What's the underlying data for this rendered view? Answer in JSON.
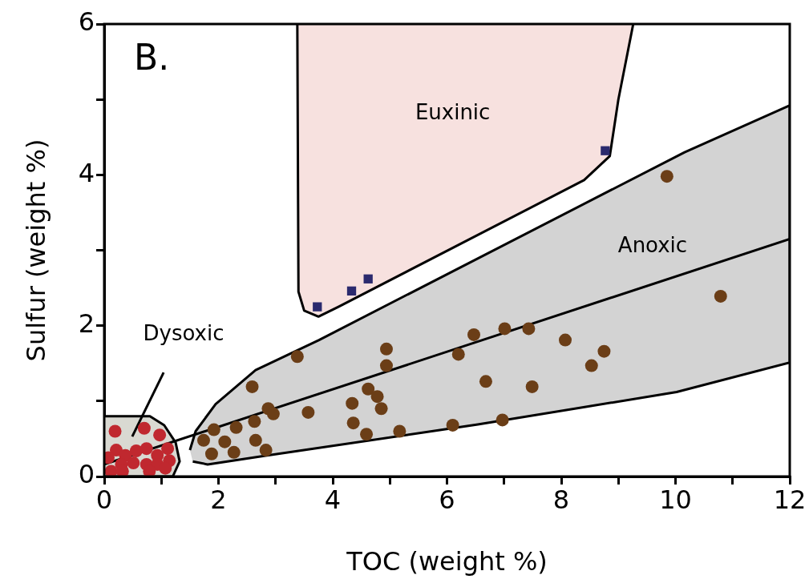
{
  "chart_data": {
    "type": "scatter",
    "xlabel": "TOC (weight %)",
    "ylabel": "Sulfur (weight %)",
    "xlim": [
      0,
      12
    ],
    "ylim": [
      0,
      6
    ],
    "xticks": [
      0,
      {
        "value": 1,
        "label": null
      },
      2,
      {
        "value": 3,
        "label": null
      },
      4,
      {
        "value": 5,
        "label": null
      },
      6,
      {
        "value": 7,
        "label": null
      },
      8,
      {
        "value": 9,
        "label": null
      },
      10,
      {
        "value": 11,
        "label": null
      },
      12
    ],
    "yticks": [
      0,
      {
        "value": 1,
        "label": null
      },
      2,
      {
        "value": 3,
        "label": null
      },
      4,
      {
        "value": 5,
        "label": null
      },
      6
    ],
    "grid": false,
    "legend": false,
    "annotations": [
      "B.",
      "Euxinic",
      "Anoxic",
      "Dysoxic"
    ],
    "series": [
      {
        "type": "area",
        "color": "#f7e1df",
        "x": [
          3.38,
          3.4,
          3.5,
          3.75,
          4.1,
          8.4,
          8.85,
          9.0,
          9.26
        ],
        "values": [
          6,
          2.45,
          2.2,
          2.12,
          2.25,
          3.93,
          4.25,
          5.0,
          6
        ]
      },
      {
        "type": "area",
        "color": "#d3d3d3",
        "x": [
          1.5,
          1.6,
          1.95,
          2.65,
          3.76,
          10.16,
          12,
          12,
          10.02,
          6.54,
          2.78,
          1.81,
          1.55
        ],
        "values": [
          0.35,
          0.6,
          0.96,
          1.41,
          1.81,
          4.3,
          4.92,
          1.51,
          1.12,
          0.69,
          0.27,
          0.16,
          0.2
        ]
      },
      {
        "type": "area",
        "color": "#d9d9d2",
        "x": [
          0,
          0.8,
          1.05,
          1.25,
          1.32,
          1.2,
          0
        ],
        "values": [
          0.8,
          0.8,
          0.68,
          0.45,
          0.2,
          0,
          0
        ]
      },
      {
        "type": "line",
        "color": "#000000",
        "x": [
          0,
          12
        ],
        "values": [
          0.16,
          3.15
        ]
      },
      {
        "type": "line",
        "color": "#000000",
        "x": [
          0.49,
          1.04
        ],
        "values": [
          0.53,
          1.38
        ]
      },
      {
        "marker": "circle",
        "color": "#c0282f",
        "x": [
          0.19,
          0.7,
          0.97,
          0.21,
          0.56,
          0.74,
          1.11,
          0.07,
          0.37,
          0.93,
          1.14,
          0.3,
          0.51,
          0.74,
          0.93,
          0.12,
          0.32,
          0.79,
          1.07
        ],
        "values": [
          0.6,
          0.64,
          0.55,
          0.35,
          0.34,
          0.37,
          0.37,
          0.25,
          0.28,
          0.28,
          0.21,
          0.16,
          0.18,
          0.16,
          0.16,
          0.07,
          0.07,
          0.07,
          0.11
        ]
      },
      {
        "marker": "circle",
        "color": "#6b3e17",
        "x": [
          3.38,
          2.59,
          4.94,
          4.94,
          6.2,
          6.47,
          2.87,
          2.96,
          2.63,
          2.31,
          1.92,
          1.74,
          2.11,
          1.88,
          2.27,
          2.65,
          2.83,
          3.57,
          4.62,
          4.78,
          4.85,
          4.34,
          4.36,
          4.59,
          5.17,
          6.1,
          10.79,
          7.01,
          7.43,
          8.07,
          8.75,
          8.53,
          6.68,
          7.49,
          6.97,
          9.85
        ],
        "values": [
          1.59,
          1.19,
          1.69,
          1.47,
          1.62,
          1.88,
          0.9,
          0.83,
          0.73,
          0.65,
          0.62,
          0.48,
          0.46,
          0.3,
          0.32,
          0.48,
          0.35,
          0.85,
          1.16,
          1.06,
          0.9,
          0.97,
          0.71,
          0.56,
          0.6,
          0.68,
          2.39,
          1.96,
          1.96,
          1.81,
          1.66,
          1.47,
          1.26,
          1.19,
          0.75,
          3.98
        ]
      },
      {
        "marker": "square",
        "color": "#2b2a6e",
        "x": [
          3.73,
          4.33,
          4.62,
          8.77
        ],
        "values": [
          2.25,
          2.46,
          2.62,
          4.32
        ]
      }
    ]
  }
}
